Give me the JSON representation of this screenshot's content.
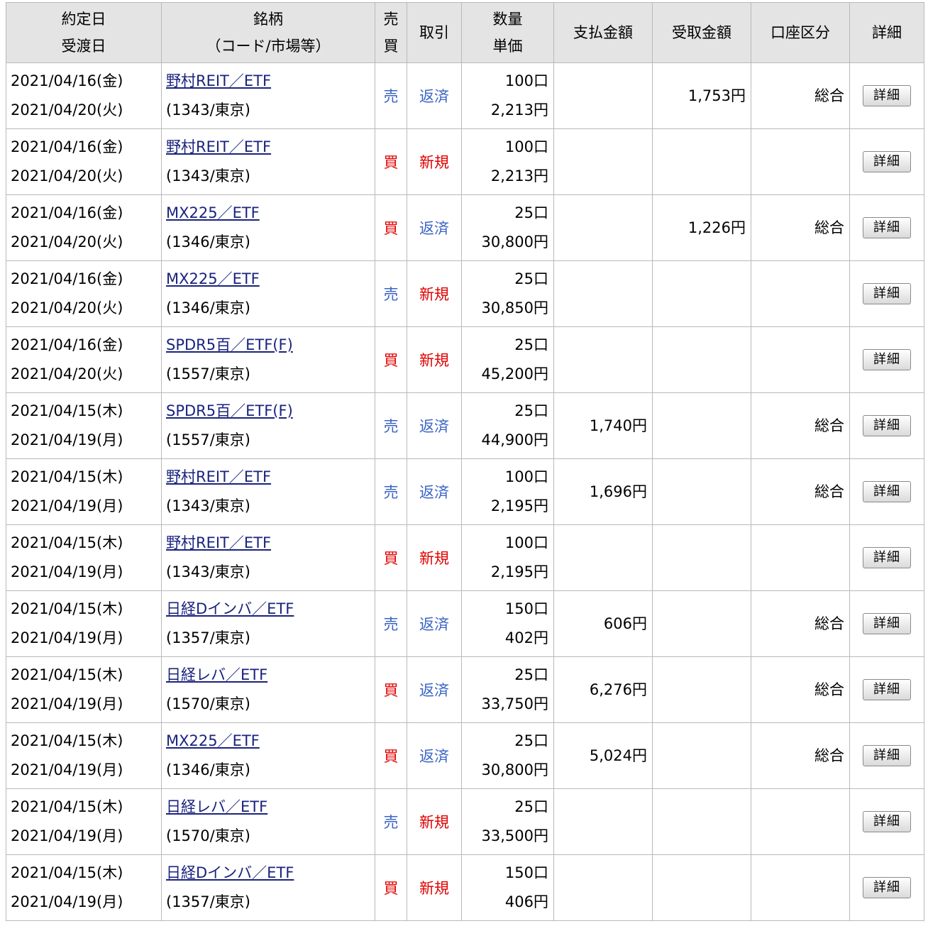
{
  "header": {
    "trade_date": "約定日",
    "settle_date": "受渡日",
    "stock": "銘柄",
    "stock_sub": "（コード/市場等）",
    "side_1": "売",
    "side_2": "買",
    "trade": "取引",
    "qty": "数量",
    "price": "単価",
    "pay": "支払金額",
    "receive": "受取金額",
    "account": "口座区分",
    "detail": "詳細"
  },
  "rows": [
    {
      "trade_date": "2021/04/16(金)",
      "settle_date": "2021/04/20(火)",
      "name": "野村REIT／ETF",
      "code": "(1343/東京)",
      "side": "売",
      "side_type": "sell",
      "trade": "返済",
      "trade_type": "settle",
      "qty": "100口",
      "price": "2,213円",
      "pay": "",
      "receive": "1,753円",
      "account": "総合",
      "detail": "詳細"
    },
    {
      "trade_date": "2021/04/16(金)",
      "settle_date": "2021/04/20(火)",
      "name": "野村REIT／ETF",
      "code": "(1343/東京)",
      "side": "買",
      "side_type": "buy",
      "trade": "新規",
      "trade_type": "new",
      "qty": "100口",
      "price": "2,213円",
      "pay": "",
      "receive": "",
      "account": "",
      "detail": "詳細"
    },
    {
      "trade_date": "2021/04/16(金)",
      "settle_date": "2021/04/20(火)",
      "name": "MX225／ETF",
      "code": "(1346/東京)",
      "side": "買",
      "side_type": "buy",
      "trade": "返済",
      "trade_type": "settle",
      "qty": "25口",
      "price": "30,800円",
      "pay": "",
      "receive": "1,226円",
      "account": "総合",
      "detail": "詳細"
    },
    {
      "trade_date": "2021/04/16(金)",
      "settle_date": "2021/04/20(火)",
      "name": "MX225／ETF",
      "code": "(1346/東京)",
      "side": "売",
      "side_type": "sell",
      "trade": "新規",
      "trade_type": "new",
      "qty": "25口",
      "price": "30,850円",
      "pay": "",
      "receive": "",
      "account": "",
      "detail": "詳細"
    },
    {
      "trade_date": "2021/04/16(金)",
      "settle_date": "2021/04/20(火)",
      "name": "SPDR5百／ETF(F)",
      "code": "(1557/東京)",
      "side": "買",
      "side_type": "buy",
      "trade": "新規",
      "trade_type": "new",
      "qty": "25口",
      "price": "45,200円",
      "pay": "",
      "receive": "",
      "account": "",
      "detail": "詳細"
    },
    {
      "trade_date": "2021/04/15(木)",
      "settle_date": "2021/04/19(月)",
      "name": "SPDR5百／ETF(F)",
      "code": "(1557/東京)",
      "side": "売",
      "side_type": "sell",
      "trade": "返済",
      "trade_type": "settle",
      "qty": "25口",
      "price": "44,900円",
      "pay": "1,740円",
      "receive": "",
      "account": "総合",
      "detail": "詳細"
    },
    {
      "trade_date": "2021/04/15(木)",
      "settle_date": "2021/04/19(月)",
      "name": "野村REIT／ETF",
      "code": "(1343/東京)",
      "side": "売",
      "side_type": "sell",
      "trade": "返済",
      "trade_type": "settle",
      "qty": "100口",
      "price": "2,195円",
      "pay": "1,696円",
      "receive": "",
      "account": "総合",
      "detail": "詳細"
    },
    {
      "trade_date": "2021/04/15(木)",
      "settle_date": "2021/04/19(月)",
      "name": "野村REIT／ETF",
      "code": "(1343/東京)",
      "side": "買",
      "side_type": "buy",
      "trade": "新規",
      "trade_type": "new",
      "qty": "100口",
      "price": "2,195円",
      "pay": "",
      "receive": "",
      "account": "",
      "detail": "詳細"
    },
    {
      "trade_date": "2021/04/15(木)",
      "settle_date": "2021/04/19(月)",
      "name": "日経Dインバ／ETF",
      "code": "(1357/東京)",
      "side": "売",
      "side_type": "sell",
      "trade": "返済",
      "trade_type": "settle",
      "qty": "150口",
      "price": "402円",
      "pay": "606円",
      "receive": "",
      "account": "総合",
      "detail": "詳細"
    },
    {
      "trade_date": "2021/04/15(木)",
      "settle_date": "2021/04/19(月)",
      "name": "日経レバ／ETF",
      "code": "(1570/東京)",
      "side": "買",
      "side_type": "buy",
      "trade": "返済",
      "trade_type": "settle",
      "qty": "25口",
      "price": "33,750円",
      "pay": "6,276円",
      "receive": "",
      "account": "総合",
      "detail": "詳細"
    },
    {
      "trade_date": "2021/04/15(木)",
      "settle_date": "2021/04/19(月)",
      "name": "MX225／ETF",
      "code": "(1346/東京)",
      "side": "買",
      "side_type": "buy",
      "trade": "返済",
      "trade_type": "settle",
      "qty": "25口",
      "price": "30,800円",
      "pay": "5,024円",
      "receive": "",
      "account": "総合",
      "detail": "詳細"
    },
    {
      "trade_date": "2021/04/15(木)",
      "settle_date": "2021/04/19(月)",
      "name": "日経レバ／ETF",
      "code": "(1570/東京)",
      "side": "売",
      "side_type": "sell",
      "trade": "新規",
      "trade_type": "new",
      "qty": "25口",
      "price": "33,500円",
      "pay": "",
      "receive": "",
      "account": "",
      "detail": "詳細"
    },
    {
      "trade_date": "2021/04/15(木)",
      "settle_date": "2021/04/19(月)",
      "name": "日経Dインバ／ETF",
      "code": "(1357/東京)",
      "side": "買",
      "side_type": "buy",
      "trade": "新規",
      "trade_type": "new",
      "qty": "150口",
      "price": "406円",
      "pay": "",
      "receive": "",
      "account": "",
      "detail": "詳細"
    }
  ],
  "colors": {
    "sell": "#3a63c4",
    "buy": "#e00000",
    "link": "#1a237e",
    "header_bg": "#e4e4e4",
    "border": "#b9b9b9"
  }
}
